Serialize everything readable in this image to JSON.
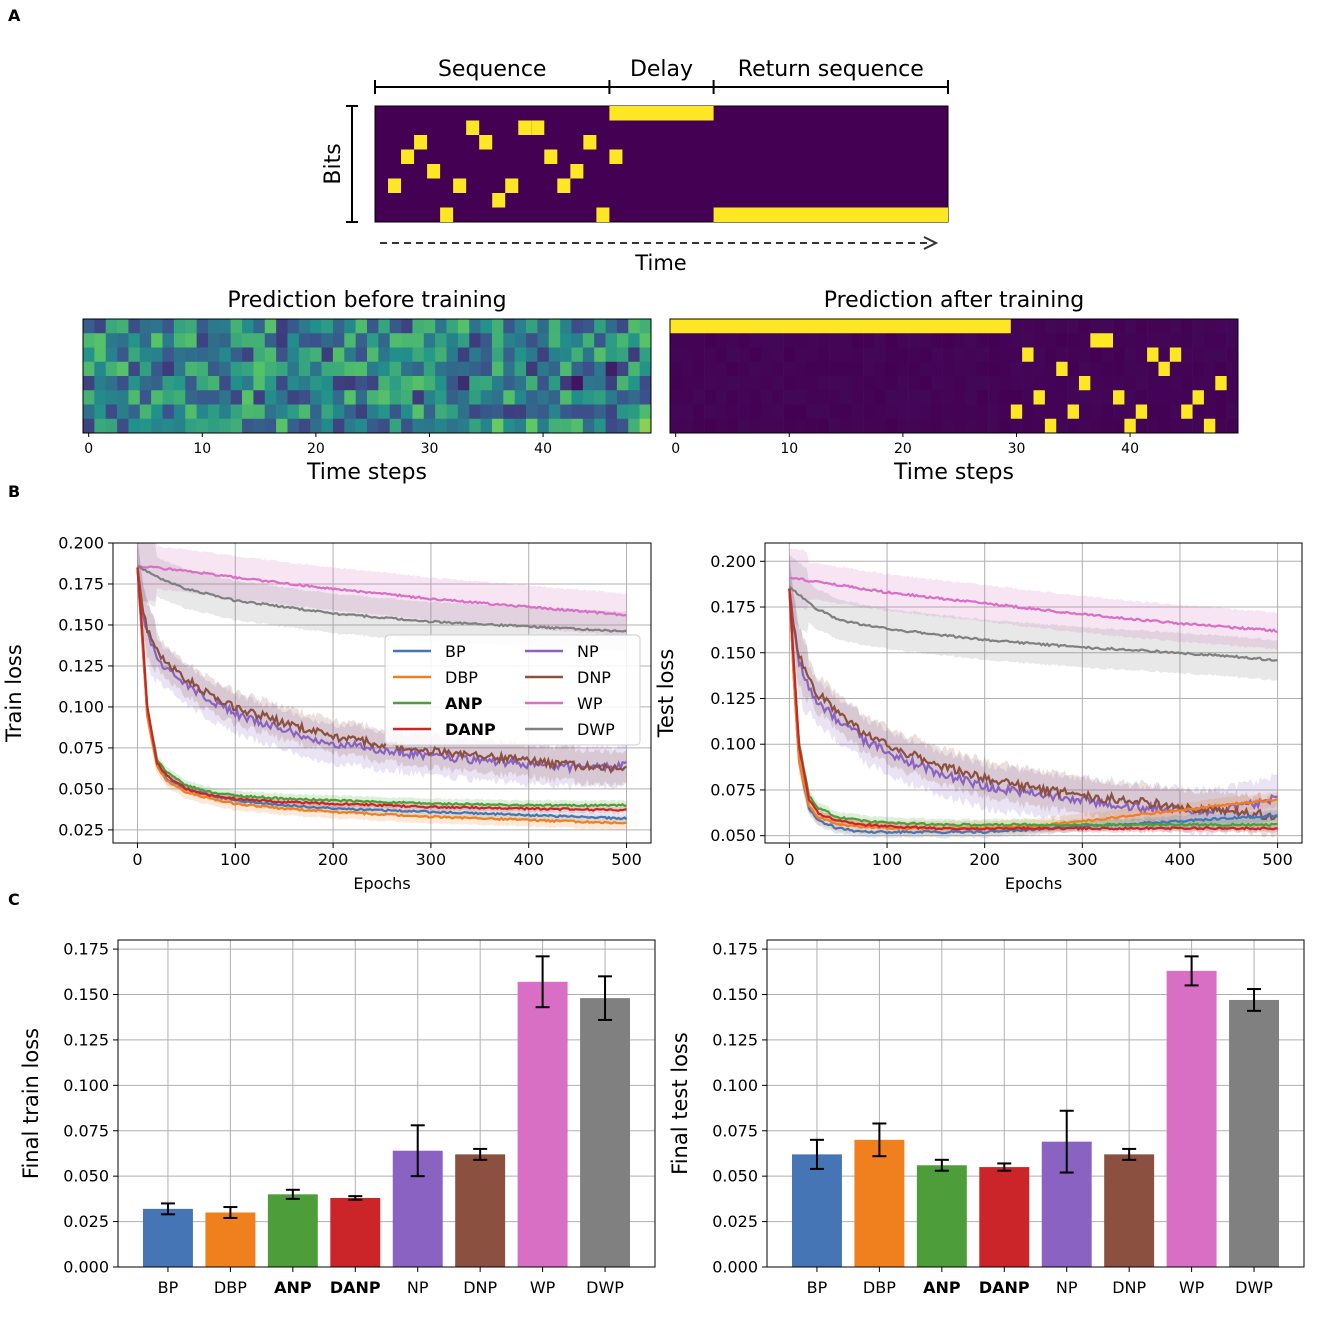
{
  "panels": {
    "a": "A",
    "b": "B",
    "c": "C"
  },
  "colors": {
    "BP": "#4575b4",
    "DBP": "#f07f1e",
    "ANP": "#4d9e3a",
    "DANP": "#cc2529",
    "NP": "#8a63c2",
    "DNP": "#8c5040",
    "WP": "#d86fc4",
    "DWP": "#808080",
    "viridis_dark": "#440154",
    "viridis_yellow": "#fde725"
  },
  "schematic": {
    "sections": [
      "Sequence",
      "Delay",
      "Return sequence"
    ],
    "ylabel": "Bits",
    "time_label": "Time",
    "sequence_bits": [
      [
        1,
        4
      ],
      [
        2,
        2
      ],
      [
        3,
        1
      ],
      [
        4,
        3
      ],
      [
        5,
        6
      ],
      [
        6,
        4
      ],
      [
        7,
        0
      ],
      [
        8,
        1
      ],
      [
        9,
        5
      ],
      [
        10,
        4
      ],
      [
        11,
        0
      ],
      [
        12,
        0
      ],
      [
        13,
        2
      ],
      [
        14,
        4
      ],
      [
        15,
        3
      ],
      [
        16,
        1
      ],
      [
        17,
        6
      ],
      [
        18,
        2
      ]
    ],
    "sequence_length": 18,
    "delay_length": 8,
    "return_length": 18
  },
  "heatmap_before": {
    "title": "Prediction before training",
    "xlabel": "Time steps",
    "xticks": [
      "0",
      "10",
      "20",
      "30",
      "40"
    ],
    "n_steps": 50,
    "n_bits": 8
  },
  "heatmap_after": {
    "title": "Prediction after training",
    "xlabel": "Time steps",
    "xticks": [
      "0",
      "10",
      "20",
      "30",
      "40"
    ],
    "n_steps": 50,
    "n_bits": 8,
    "delay_steps": [
      0,
      30
    ],
    "output_bits": [
      [
        30,
        6
      ],
      [
        31,
        2
      ],
      [
        32,
        5
      ],
      [
        33,
        7
      ],
      [
        34,
        3
      ],
      [
        35,
        6
      ],
      [
        36,
        4
      ],
      [
        37,
        1
      ],
      [
        38,
        1
      ],
      [
        39,
        5
      ],
      [
        40,
        7
      ],
      [
        41,
        6
      ],
      [
        42,
        2
      ],
      [
        43,
        3
      ],
      [
        44,
        2
      ],
      [
        45,
        6
      ],
      [
        46,
        5
      ],
      [
        47,
        7
      ],
      [
        48,
        4
      ]
    ]
  },
  "chart_data": [
    {
      "type": "line",
      "title": "",
      "xlabel": "Epochs",
      "ylabel": "Train loss",
      "xlim": [
        -25,
        525
      ],
      "ylim": [
        0.017,
        0.2
      ],
      "xticks": [
        0,
        100,
        200,
        300,
        400,
        500
      ],
      "yticks": [
        0.025,
        0.05,
        0.075,
        0.1,
        0.125,
        0.15,
        0.175,
        0.2
      ],
      "ytick_labels": [
        "0.025",
        "0.050",
        "0.075",
        "0.100",
        "0.125",
        "0.150",
        "0.175",
        "0.200"
      ],
      "legend_placement": "center-right",
      "legend": [
        "BP",
        "DBP",
        "ANP",
        "DANP",
        "NP",
        "DNP",
        "WP",
        "DWP"
      ],
      "legend_bold": [
        "ANP",
        "DANP"
      ],
      "series": [
        {
          "name": "BP",
          "x": [
            0,
            5,
            10,
            20,
            30,
            50,
            75,
            100,
            150,
            200,
            300,
            400,
            500
          ],
          "y": [
            0.185,
            0.14,
            0.095,
            0.065,
            0.056,
            0.05,
            0.046,
            0.043,
            0.04,
            0.038,
            0.036,
            0.034,
            0.032
          ],
          "band": 0.003
        },
        {
          "name": "DBP",
          "x": [
            0,
            5,
            10,
            20,
            30,
            50,
            75,
            100,
            150,
            200,
            300,
            400,
            500
          ],
          "y": [
            0.185,
            0.14,
            0.095,
            0.064,
            0.055,
            0.048,
            0.044,
            0.041,
            0.038,
            0.036,
            0.033,
            0.031,
            0.029
          ],
          "band": 0.004
        },
        {
          "name": "ANP",
          "x": [
            0,
            5,
            10,
            20,
            30,
            50,
            75,
            100,
            150,
            200,
            300,
            400,
            500
          ],
          "y": [
            0.185,
            0.145,
            0.1,
            0.068,
            0.06,
            0.052,
            0.048,
            0.046,
            0.044,
            0.043,
            0.041,
            0.04,
            0.04
          ],
          "band": 0.003
        },
        {
          "name": "DANP",
          "x": [
            0,
            5,
            10,
            20,
            30,
            50,
            75,
            100,
            150,
            200,
            300,
            400,
            500
          ],
          "y": [
            0.185,
            0.145,
            0.1,
            0.066,
            0.058,
            0.05,
            0.046,
            0.044,
            0.042,
            0.041,
            0.039,
            0.038,
            0.037
          ],
          "band": 0.002
        },
        {
          "name": "NP",
          "x": [
            0,
            5,
            10,
            20,
            30,
            50,
            75,
            100,
            150,
            200,
            250,
            300,
            350,
            400,
            450,
            500
          ],
          "y": [
            0.185,
            0.16,
            0.145,
            0.13,
            0.123,
            0.113,
            0.104,
            0.096,
            0.086,
            0.078,
            0.074,
            0.07,
            0.067,
            0.065,
            0.063,
            0.064
          ],
          "band": 0.012
        },
        {
          "name": "DNP",
          "x": [
            0,
            5,
            10,
            20,
            30,
            50,
            75,
            100,
            150,
            200,
            250,
            300,
            350,
            400,
            450,
            500
          ],
          "y": [
            0.185,
            0.162,
            0.148,
            0.135,
            0.127,
            0.117,
            0.107,
            0.1,
            0.09,
            0.082,
            0.077,
            0.073,
            0.07,
            0.067,
            0.064,
            0.062
          ],
          "band": 0.01
        },
        {
          "name": "WP",
          "x": [
            0,
            50,
            100,
            200,
            300,
            400,
            500
          ],
          "y": [
            0.186,
            0.183,
            0.179,
            0.172,
            0.166,
            0.161,
            0.156
          ],
          "band": 0.013
        },
        {
          "name": "DWP",
          "x": [
            0,
            25,
            50,
            100,
            200,
            300,
            400,
            500
          ],
          "y": [
            0.186,
            0.178,
            0.172,
            0.165,
            0.157,
            0.152,
            0.149,
            0.146
          ],
          "band": 0.012
        }
      ]
    },
    {
      "type": "line",
      "title": "",
      "xlabel": "Epochs",
      "ylabel": "Test loss",
      "xlim": [
        -25,
        525
      ],
      "ylim": [
        0.046,
        0.21
      ],
      "xticks": [
        0,
        100,
        200,
        300,
        400,
        500
      ],
      "yticks": [
        0.05,
        0.075,
        0.1,
        0.125,
        0.15,
        0.175,
        0.2
      ],
      "ytick_labels": [
        "0.050",
        "0.075",
        "0.100",
        "0.125",
        "0.150",
        "0.175",
        "0.200"
      ],
      "series": [
        {
          "name": "BP",
          "x": [
            0,
            5,
            10,
            20,
            30,
            50,
            75,
            100,
            150,
            200,
            300,
            400,
            500
          ],
          "y": [
            0.185,
            0.13,
            0.09,
            0.065,
            0.058,
            0.054,
            0.052,
            0.052,
            0.052,
            0.052,
            0.055,
            0.058,
            0.061
          ],
          "band": 0.003
        },
        {
          "name": "DBP",
          "x": [
            0,
            5,
            10,
            20,
            30,
            50,
            75,
            100,
            150,
            200,
            250,
            300,
            400,
            500
          ],
          "y": [
            0.185,
            0.13,
            0.09,
            0.066,
            0.06,
            0.056,
            0.055,
            0.054,
            0.054,
            0.054,
            0.055,
            0.058,
            0.064,
            0.07
          ],
          "band": 0.004
        },
        {
          "name": "ANP",
          "x": [
            0,
            5,
            10,
            20,
            30,
            50,
            75,
            100,
            150,
            200,
            300,
            400,
            500
          ],
          "y": [
            0.185,
            0.14,
            0.1,
            0.072,
            0.065,
            0.06,
            0.058,
            0.057,
            0.056,
            0.056,
            0.056,
            0.056,
            0.056
          ],
          "band": 0.003
        },
        {
          "name": "DANP",
          "x": [
            0,
            5,
            10,
            20,
            30,
            50,
            75,
            100,
            150,
            200,
            300,
            400,
            500
          ],
          "y": [
            0.185,
            0.14,
            0.098,
            0.07,
            0.062,
            0.058,
            0.056,
            0.055,
            0.054,
            0.054,
            0.054,
            0.054,
            0.054
          ],
          "band": 0.002
        },
        {
          "name": "NP",
          "x": [
            0,
            5,
            10,
            20,
            30,
            50,
            75,
            100,
            150,
            200,
            250,
            300,
            350,
            400,
            450,
            500
          ],
          "y": [
            0.185,
            0.16,
            0.145,
            0.13,
            0.123,
            0.113,
            0.103,
            0.095,
            0.085,
            0.077,
            0.073,
            0.069,
            0.066,
            0.064,
            0.064,
            0.071
          ],
          "band": 0.012
        },
        {
          "name": "DNP",
          "x": [
            0,
            5,
            10,
            20,
            30,
            50,
            75,
            100,
            150,
            200,
            250,
            300,
            350,
            400,
            450,
            500
          ],
          "y": [
            0.185,
            0.162,
            0.148,
            0.135,
            0.127,
            0.117,
            0.107,
            0.099,
            0.089,
            0.081,
            0.076,
            0.072,
            0.069,
            0.066,
            0.063,
            0.061
          ],
          "band": 0.01
        },
        {
          "name": "WP",
          "x": [
            0,
            50,
            100,
            200,
            300,
            400,
            500
          ],
          "y": [
            0.191,
            0.187,
            0.183,
            0.177,
            0.171,
            0.166,
            0.162
          ],
          "band": 0.01
        },
        {
          "name": "DWP",
          "x": [
            0,
            25,
            50,
            100,
            200,
            300,
            400,
            500
          ],
          "y": [
            0.186,
            0.175,
            0.168,
            0.163,
            0.157,
            0.153,
            0.15,
            0.146
          ],
          "band": 0.011
        }
      ]
    },
    {
      "type": "bar",
      "title": "",
      "xlabel": "",
      "ylabel": "Final train loss",
      "ylim": [
        0,
        0.18
      ],
      "yticks": [
        0,
        0.025,
        0.05,
        0.075,
        0.1,
        0.125,
        0.15,
        0.175
      ],
      "ytick_labels": [
        "0.000",
        "0.025",
        "0.050",
        "0.075",
        "0.100",
        "0.125",
        "0.150",
        "0.175"
      ],
      "categories": [
        "BP",
        "DBP",
        "ANP",
        "DANP",
        "NP",
        "DNP",
        "WP",
        "DWP"
      ],
      "bold_categories": [
        "ANP",
        "DANP"
      ],
      "values": [
        0.032,
        0.03,
        0.04,
        0.038,
        0.064,
        0.062,
        0.157,
        0.148
      ],
      "errors": [
        0.003,
        0.003,
        0.0025,
        0.001,
        0.014,
        0.003,
        0.014,
        0.012
      ]
    },
    {
      "type": "bar",
      "title": "",
      "xlabel": "",
      "ylabel": "Final test loss",
      "ylim": [
        0,
        0.18
      ],
      "yticks": [
        0,
        0.025,
        0.05,
        0.075,
        0.1,
        0.125,
        0.15,
        0.175
      ],
      "ytick_labels": [
        "0.000",
        "0.025",
        "0.050",
        "0.075",
        "0.100",
        "0.125",
        "0.150",
        "0.175"
      ],
      "categories": [
        "BP",
        "DBP",
        "ANP",
        "DANP",
        "NP",
        "DNP",
        "WP",
        "DWP"
      ],
      "bold_categories": [
        "ANP",
        "DANP"
      ],
      "values": [
        0.062,
        0.07,
        0.056,
        0.055,
        0.069,
        0.062,
        0.163,
        0.147
      ],
      "errors": [
        0.008,
        0.009,
        0.003,
        0.002,
        0.017,
        0.003,
        0.008,
        0.006
      ]
    }
  ]
}
